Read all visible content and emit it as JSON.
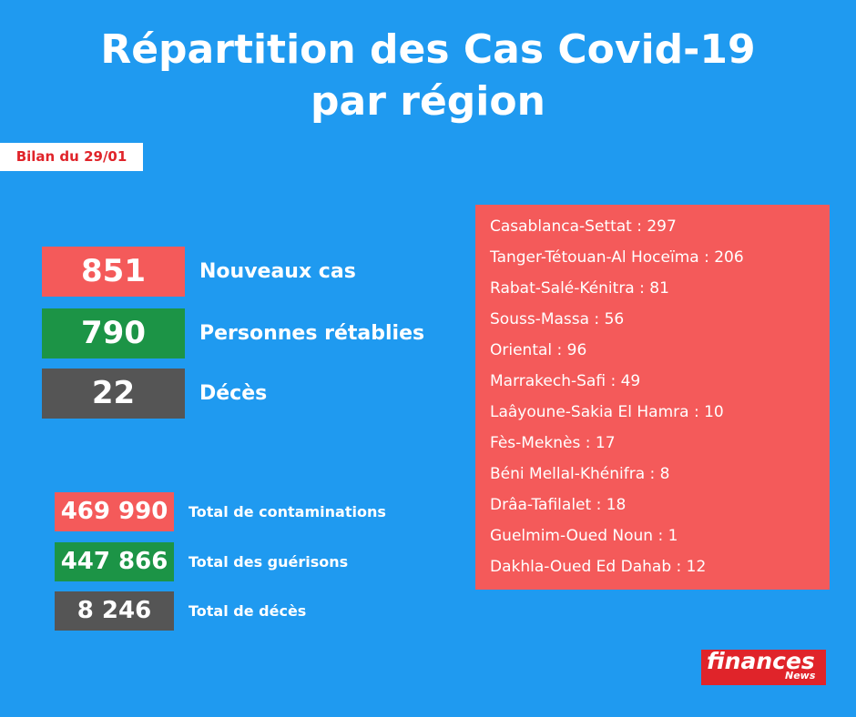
{
  "header": {
    "title": [
      "Répartition des Cas Covid-19",
      "par région"
    ],
    "date": "Bilan du 29/01"
  },
  "daily": [
    {
      "value": "851",
      "label": "Nouveaux cas"
    },
    {
      "value": "790",
      "label": "Personnes rétablies"
    },
    {
      "value": "22",
      "label": "Décès"
    }
  ],
  "totals": [
    {
      "value": "469 990",
      "label": "Total de contaminations"
    },
    {
      "value": "447 866",
      "label": "Total des guérisons"
    },
    {
      "value": "8 246",
      "label": "Total de décès"
    }
  ],
  "regions": [
    "Casablanca-Settat : 297",
    "Tanger-Tétouan-Al Hoceïma : 206",
    "Rabat-Salé-Kénitra : 81",
    "Souss-Massa : 56",
    "Oriental : 96",
    "Marrakech-Safi : 49",
    "Laâyoune-Sakia El Hamra : 10",
    "Fès-Meknès : 17",
    "Béni Mellal-Khénifra : 8",
    "Drâa-Tafilalet : 18",
    "Guelmim-Oued Noun : 1",
    "Dakhla-Oued Ed Dahab : 12"
  ],
  "logo": {
    "name": "finances",
    "sub": "News"
  }
}
